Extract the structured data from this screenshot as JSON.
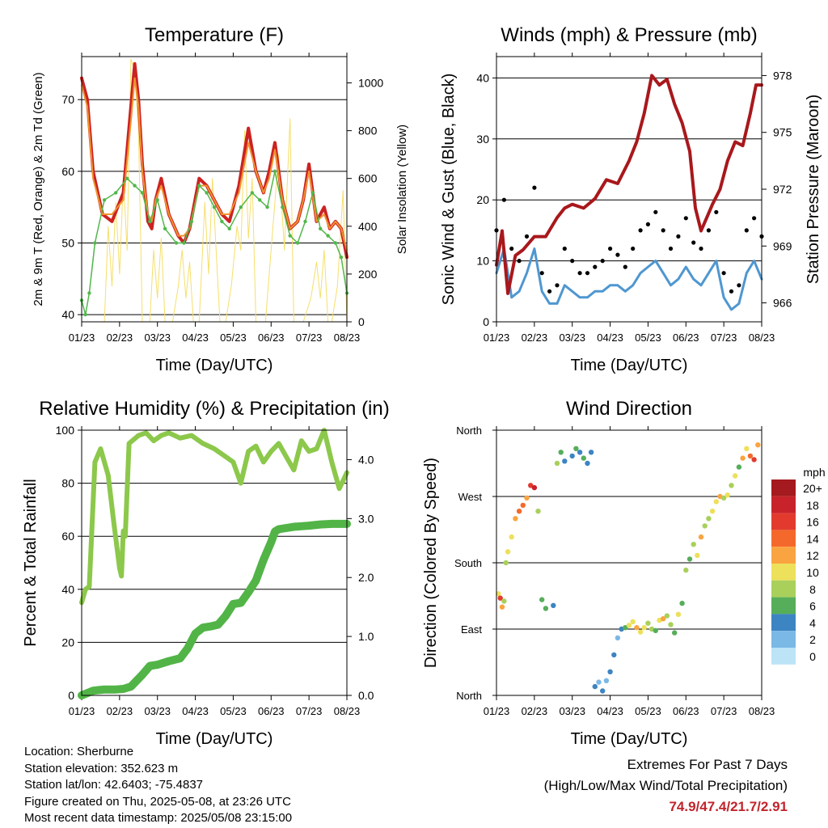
{
  "colors": {
    "temp2m": "#cc2222",
    "temp9m": "#f0932e",
    "dewpoint": "#52b74b",
    "solar": "#f5df6a",
    "gust": "#000000",
    "wind": "#4f97d0",
    "pressure": "#a8181c",
    "rh": "#8cc84b",
    "precip": "#52b447",
    "extremes": "#c0242b"
  },
  "info": {
    "location": "Location: Sherburne",
    "elevation": "Station elevation: 352.623 m",
    "latlon": "Station lat/lon: 42.6403; -75.4837",
    "created": "Figure created on Thu, 2025-05-08, at 23:26 UTC",
    "recent": "Most recent data timestamp: 2025/05/08 23:15:00"
  },
  "extremes": {
    "title": "Extremes For Past 7 Days",
    "subtitle": "(High/Low/Max Wind/Total Precipitation)",
    "values": "74.9/47.4/21.7/2.91"
  },
  "chart_data": [
    {
      "type": "line",
      "title": "Temperature (F)",
      "xlabel": "Time (Day/UTC)",
      "ylabel": "2m & 9m T (Red, Orange) & 2m Td (Green)",
      "y2label": "Solar Insolation (Yellow)",
      "x_ticks": [
        "01/23",
        "02/23",
        "03/23",
        "04/23",
        "05/23",
        "06/23",
        "07/23",
        "08/23"
      ],
      "ylim": [
        39,
        76
      ],
      "y_ticks": [
        40,
        50,
        60,
        70
      ],
      "y2lim": [
        0,
        1110
      ],
      "y2_ticks": [
        0,
        200,
        400,
        600,
        800,
        1000
      ],
      "grid": true,
      "series": [
        {
          "name": "2m T",
          "axis": "left",
          "color": "#cc2222",
          "x": [
            0,
            0.05,
            0.15,
            0.3,
            0.55,
            0.8,
            1.1,
            1.3,
            1.4,
            1.5,
            1.6,
            1.75,
            1.85,
            1.95,
            2.1,
            2.3,
            2.55,
            2.7,
            2.85,
            3.1,
            3.3,
            3.5,
            3.7,
            3.9,
            4.15,
            4.4,
            4.6,
            4.8,
            4.95,
            5.1,
            5.3,
            5.5,
            5.7,
            5.85,
            6.0,
            6.2,
            6.4,
            6.55,
            6.7,
            6.85,
            7.0
          ],
          "y": [
            73,
            72,
            70,
            60,
            54,
            53,
            57,
            69,
            75,
            70,
            61,
            53,
            52,
            56,
            59,
            54,
            51,
            50,
            52,
            59,
            58,
            56,
            54,
            53,
            58,
            66,
            60,
            57,
            60,
            64,
            56,
            52,
            53,
            56,
            61,
            53,
            55,
            52,
            53,
            52,
            48
          ]
        },
        {
          "name": "9m T",
          "axis": "left",
          "color": "#f0932e",
          "x": [
            0,
            0.05,
            0.15,
            0.3,
            0.55,
            0.8,
            1.1,
            1.3,
            1.4,
            1.5,
            1.6,
            1.75,
            1.85,
            1.95,
            2.1,
            2.3,
            2.55,
            2.7,
            2.85,
            3.1,
            3.3,
            3.5,
            3.7,
            3.9,
            4.15,
            4.4,
            4.6,
            4.8,
            4.95,
            5.1,
            5.3,
            5.5,
            5.7,
            5.85,
            6.0,
            6.2,
            6.4,
            6.55,
            6.7,
            6.85,
            7.0
          ],
          "y": [
            72,
            71,
            69,
            59,
            54,
            54,
            56,
            67,
            73,
            69,
            60,
            54,
            53,
            56,
            58,
            54,
            51,
            51,
            52,
            58,
            58,
            56,
            54,
            54,
            57,
            64,
            60,
            57,
            59,
            63,
            56,
            52,
            53,
            56,
            60,
            53,
            54,
            52,
            53,
            52,
            49
          ]
        },
        {
          "name": "2m Td",
          "axis": "left",
          "color": "#52b74b",
          "x": [
            0,
            0.1,
            0.2,
            0.35,
            0.6,
            0.9,
            1.2,
            1.4,
            1.6,
            1.8,
            2.0,
            2.2,
            2.5,
            2.7,
            2.9,
            3.1,
            3.3,
            3.5,
            3.7,
            3.9,
            4.2,
            4.5,
            4.7,
            4.9,
            5.1,
            5.3,
            5.5,
            5.7,
            5.9,
            6.1,
            6.3,
            6.5,
            6.7,
            6.85,
            7.0
          ],
          "y": [
            42,
            40,
            43,
            50,
            56,
            57,
            59,
            58,
            57,
            53,
            56,
            52,
            50,
            50,
            53,
            58,
            57,
            55,
            53,
            52,
            55,
            57,
            56,
            55,
            60,
            55,
            51,
            50,
            53,
            57,
            52,
            51,
            50,
            48,
            43
          ]
        },
        {
          "name": "Solar",
          "axis": "right",
          "color": "#f5df6a",
          "x": [
            0.6,
            0.7,
            0.8,
            0.9,
            1.0,
            1.1,
            1.2,
            1.3,
            1.4,
            1.5,
            1.6,
            1.8,
            1.9,
            2.0,
            2.1,
            2.2,
            2.4,
            2.55,
            2.65,
            2.75,
            2.85,
            2.95,
            3.1,
            3.25,
            3.35,
            3.45,
            3.55,
            3.65,
            3.8,
            3.95,
            4.1,
            4.2,
            4.3,
            4.4,
            4.5,
            4.6,
            4.7,
            4.85,
            5.05,
            5.2,
            5.35,
            5.5,
            5.6,
            5.85,
            6.05,
            6.2,
            6.3,
            6.4,
            6.5,
            6.6,
            6.75,
            6.9,
            7.0
          ],
          "y": [
            0,
            400,
            150,
            500,
            200,
            600,
            300,
            1100,
            1050,
            800,
            0,
            0,
            300,
            100,
            350,
            0,
            0,
            150,
            300,
            100,
            250,
            0,
            0,
            500,
            200,
            600,
            300,
            0,
            0,
            150,
            400,
            300,
            800,
            350,
            600,
            0,
            0,
            0,
            400,
            700,
            300,
            850,
            0,
            0,
            100,
            250,
            100,
            300,
            0,
            0,
            150,
            550,
            0
          ]
        }
      ]
    },
    {
      "type": "line",
      "title": "Winds (mph) & Pressure (mb)",
      "xlabel": "Time (Day/UTC)",
      "ylabel": "Sonic Wind & Gust (Blue, Black)",
      "y2label": "Station Pressure (Maroon)",
      "x_ticks": [
        "01/23",
        "02/23",
        "03/23",
        "04/23",
        "05/23",
        "06/23",
        "07/23",
        "08/23"
      ],
      "ylim": [
        0,
        43.5
      ],
      "y_ticks": [
        0,
        10,
        20,
        30,
        40
      ],
      "y2lim": [
        965.0,
        979.0
      ],
      "y2_ticks": [
        966,
        969,
        972,
        975,
        978
      ],
      "grid": true,
      "series": [
        {
          "name": "Gust",
          "axis": "left",
          "color": "#000000",
          "x": [
            0,
            0.2,
            0.4,
            0.6,
            0.8,
            1.0,
            1.2,
            1.4,
            1.6,
            1.8,
            2.0,
            2.2,
            2.4,
            2.6,
            2.8,
            3.0,
            3.2,
            3.4,
            3.6,
            3.8,
            4.0,
            4.2,
            4.4,
            4.6,
            4.8,
            5.0,
            5.2,
            5.4,
            5.6,
            5.8,
            6.0,
            6.2,
            6.4,
            6.6,
            6.8,
            7.0
          ],
          "y": [
            15,
            20,
            12,
            10,
            14,
            22,
            8,
            5,
            6,
            12,
            10,
            8,
            8,
            9,
            10,
            12,
            11,
            9,
            12,
            15,
            16,
            18,
            15,
            12,
            14,
            17,
            13,
            12,
            15,
            18,
            8,
            5,
            6,
            15,
            17,
            14
          ]
        },
        {
          "name": "Wind",
          "axis": "left",
          "color": "#4f97d0",
          "x": [
            0,
            0.2,
            0.4,
            0.6,
            0.8,
            1.0,
            1.2,
            1.4,
            1.6,
            1.8,
            2.0,
            2.2,
            2.4,
            2.6,
            2.8,
            3.0,
            3.2,
            3.4,
            3.6,
            3.8,
            4.0,
            4.2,
            4.4,
            4.6,
            4.8,
            5.0,
            5.2,
            5.4,
            5.6,
            5.8,
            6.0,
            6.2,
            6.4,
            6.6,
            6.8,
            7.0
          ],
          "y": [
            8,
            12,
            4,
            5,
            8,
            12,
            5,
            3,
            3,
            6,
            5,
            4,
            4,
            5,
            5,
            6,
            6,
            5,
            6,
            8,
            9,
            10,
            8,
            6,
            7,
            9,
            7,
            6,
            8,
            10,
            4,
            2,
            3,
            8,
            10,
            7
          ]
        },
        {
          "name": "Pressure",
          "axis": "right",
          "color": "#a8181c",
          "x": [
            0,
            0.15,
            0.3,
            0.5,
            0.7,
            1.0,
            1.3,
            1.6,
            1.8,
            2.0,
            2.3,
            2.6,
            2.9,
            3.2,
            3.5,
            3.7,
            3.9,
            4.1,
            4.3,
            4.5,
            4.7,
            4.9,
            5.1,
            5.25,
            5.4,
            5.55,
            5.7,
            5.9,
            6.1,
            6.3,
            6.5,
            6.7,
            6.85,
            7.0
          ],
          "y": [
            968.0,
            969.8,
            966.5,
            968.5,
            968.8,
            969.5,
            969.5,
            970.5,
            971.0,
            971.2,
            971.0,
            971.5,
            972.5,
            972.3,
            973.5,
            974.5,
            976.0,
            978.0,
            977.5,
            977.8,
            976.5,
            975.5,
            974.0,
            971.0,
            969.8,
            970.5,
            971.2,
            972.0,
            973.5,
            974.5,
            974.3,
            976.0,
            977.5,
            977.5
          ]
        }
      ]
    },
    {
      "type": "line",
      "title": "Relative Humidity (%) & Precipitation (in)",
      "xlabel": "Time (Day/UTC)",
      "ylabel": "Percent & Total Rainfall",
      "x_ticks": [
        "01/23",
        "02/23",
        "03/23",
        "04/23",
        "05/23",
        "06/23",
        "07/23",
        "08/23"
      ],
      "ylim": [
        0,
        100
      ],
      "y_ticks": [
        0,
        20,
        40,
        60,
        80,
        100
      ],
      "y2lim": [
        0,
        4.5
      ],
      "y2_ticks": [
        0.0,
        1.0,
        2.0,
        3.0,
        4.0
      ],
      "grid": true,
      "series": [
        {
          "name": "RH",
          "axis": "left",
          "color": "#8cc84b",
          "x": [
            0,
            0.1,
            0.2,
            0.35,
            0.5,
            0.7,
            0.85,
            1.0,
            1.05,
            1.1,
            1.15,
            1.25,
            1.5,
            1.7,
            1.9,
            2.1,
            2.3,
            2.6,
            2.9,
            3.2,
            3.5,
            3.8,
            4.0,
            4.2,
            4.4,
            4.6,
            4.8,
            5.0,
            5.2,
            5.4,
            5.6,
            5.8,
            6.0,
            6.2,
            6.4,
            6.6,
            6.8,
            7.0
          ],
          "y": [
            35,
            40,
            41,
            88,
            93,
            83,
            65,
            48,
            45,
            62,
            60,
            95,
            98,
            99,
            96,
            98,
            99,
            97,
            98,
            95,
            93,
            90,
            88,
            80,
            92,
            94,
            88,
            92,
            95,
            90,
            85,
            96,
            92,
            93,
            100,
            88,
            78,
            84
          ]
        },
        {
          "name": "Precipitation",
          "axis": "right",
          "color": "#52b447",
          "x": [
            0,
            0.3,
            0.6,
            0.9,
            1.1,
            1.3,
            1.6,
            1.8,
            2.0,
            2.3,
            2.6,
            2.8,
            3.0,
            3.2,
            3.4,
            3.6,
            3.8,
            4.0,
            4.2,
            4.4,
            4.6,
            4.8,
            5.0,
            5.1,
            5.2,
            5.4,
            5.6,
            5.8,
            6.0,
            6.3,
            6.6,
            7.0
          ],
          "y": [
            0.0,
            0.08,
            0.1,
            0.1,
            0.11,
            0.15,
            0.35,
            0.5,
            0.52,
            0.58,
            0.63,
            0.8,
            1.05,
            1.15,
            1.17,
            1.2,
            1.35,
            1.55,
            1.57,
            1.75,
            1.95,
            2.3,
            2.6,
            2.78,
            2.82,
            2.84,
            2.86,
            2.87,
            2.88,
            2.9,
            2.91,
            2.91
          ]
        }
      ]
    },
    {
      "type": "scatter",
      "title": "Wind Direction",
      "xlabel": "Time (Day/UTC)",
      "ylabel": "Direction (Colored By Speed)",
      "x_ticks": [
        "01/23",
        "02/23",
        "03/23",
        "04/23",
        "05/23",
        "06/23",
        "07/23",
        "08/23"
      ],
      "y_ticks": [
        "North",
        "East",
        "South",
        "West",
        "North"
      ],
      "ylim": [
        0,
        360
      ],
      "grid": true,
      "legend": {
        "title": "mph",
        "labels": [
          "20+",
          "18",
          "16",
          "14",
          "12",
          "10",
          "8",
          "6",
          "4",
          "2",
          "0"
        ],
        "colors": [
          "#a51a1e",
          "#c8232a",
          "#e23b2e",
          "#f4692b",
          "#f9a440",
          "#ede05a",
          "#a8d05b",
          "#56ae5a",
          "#3d84c3",
          "#7ab8e6",
          "#bde3f7"
        ]
      },
      "points": {
        "x": [
          0.05,
          0.1,
          0.15,
          0.2,
          0.25,
          0.3,
          0.4,
          0.5,
          0.6,
          0.7,
          0.8,
          0.9,
          1.0,
          1.1,
          1.2,
          1.3,
          1.5,
          1.6,
          1.7,
          1.8,
          2.0,
          2.1,
          2.2,
          2.3,
          2.4,
          2.5,
          2.6,
          2.7,
          2.8,
          2.9,
          3.0,
          3.1,
          3.2,
          3.3,
          3.4,
          3.5,
          3.6,
          3.7,
          3.8,
          3.9,
          4.0,
          4.1,
          4.2,
          4.3,
          4.4,
          4.5,
          4.6,
          4.7,
          4.8,
          4.9,
          5.0,
          5.1,
          5.2,
          5.3,
          5.4,
          5.5,
          5.6,
          5.7,
          5.8,
          5.9,
          6.0,
          6.1,
          6.2,
          6.3,
          6.4,
          6.5,
          6.6,
          6.7,
          6.8,
          6.9
        ],
        "y": [
          138,
          132,
          120,
          128,
          180,
          195,
          215,
          240,
          250,
          258,
          268,
          285,
          282,
          250,
          130,
          118,
          122,
          315,
          330,
          318,
          325,
          335,
          330,
          322,
          315,
          330,
          12,
          18,
          6,
          20,
          32,
          55,
          78,
          90,
          92,
          95,
          100,
          92,
          86,
          92,
          98,
          90,
          88,
          102,
          104,
          108,
          96,
          85,
          110,
          125,
          170,
          185,
          205,
          190,
          215,
          230,
          240,
          250,
          263,
          270,
          268,
          272,
          285,
          298,
          310,
          322,
          335,
          325,
          320,
          340
        ],
        "speed": [
          10,
          16,
          12,
          8,
          8,
          10,
          10,
          12,
          14,
          14,
          12,
          16,
          18,
          8,
          6,
          6,
          4,
          8,
          6,
          4,
          4,
          6,
          4,
          6,
          4,
          4,
          4,
          2,
          4,
          2,
          4,
          4,
          2,
          4,
          6,
          10,
          10,
          12,
          10,
          10,
          8,
          8,
          6,
          10,
          12,
          8,
          8,
          6,
          10,
          6,
          8,
          6,
          8,
          10,
          12,
          8,
          8,
          10,
          10,
          12,
          8,
          10,
          8,
          10,
          6,
          12,
          10,
          14,
          16,
          12
        ]
      }
    }
  ]
}
